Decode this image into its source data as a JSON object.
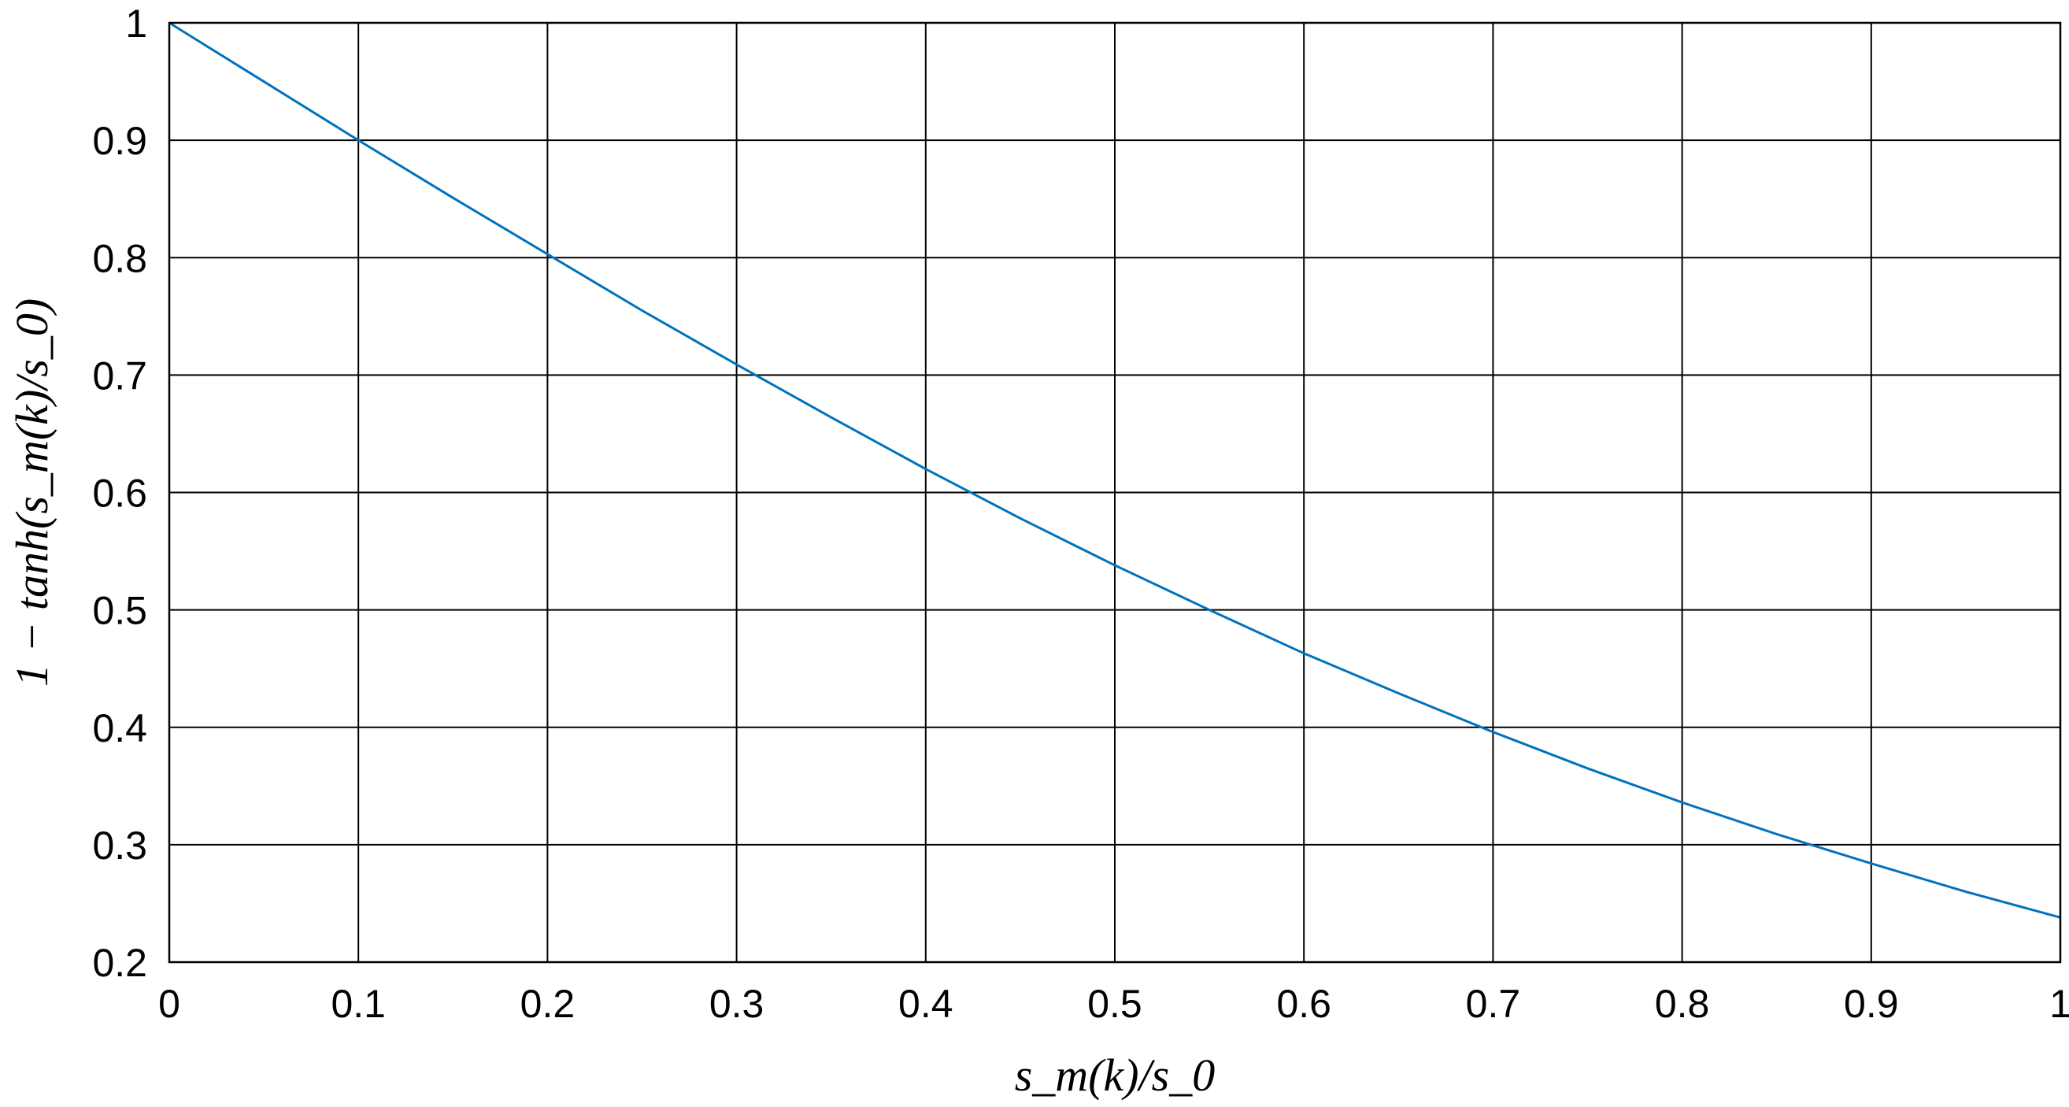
{
  "chart_data": {
    "type": "line",
    "xlabel": "s_m(k)/s_0",
    "ylabel": "1 − tanh(s_m(k)/s_0)",
    "xlim": [
      0,
      1
    ],
    "ylim": [
      0.2,
      1
    ],
    "grid": true,
    "x_ticks": [
      "0",
      "0.1",
      "0.2",
      "0.3",
      "0.4",
      "0.5",
      "0.6",
      "0.7",
      "0.8",
      "0.9",
      "1"
    ],
    "y_ticks": [
      "0.2",
      "0.3",
      "0.4",
      "0.5",
      "0.6",
      "0.7",
      "0.8",
      "0.9",
      "1"
    ],
    "series": [
      {
        "color": "#0072bd",
        "x": [
          0,
          0.05,
          0.1,
          0.15,
          0.2,
          0.25,
          0.3,
          0.35,
          0.4,
          0.45,
          0.5,
          0.55,
          0.6,
          0.65,
          0.7,
          0.75,
          0.8,
          0.85,
          0.9,
          0.95,
          1
        ],
        "y": [
          1.0,
          0.95,
          0.9,
          0.851,
          0.803,
          0.755,
          0.709,
          0.664,
          0.62,
          0.578,
          0.538,
          0.5,
          0.463,
          0.429,
          0.396,
          0.365,
          0.336,
          0.309,
          0.284,
          0.26,
          0.238
        ]
      }
    ]
  }
}
